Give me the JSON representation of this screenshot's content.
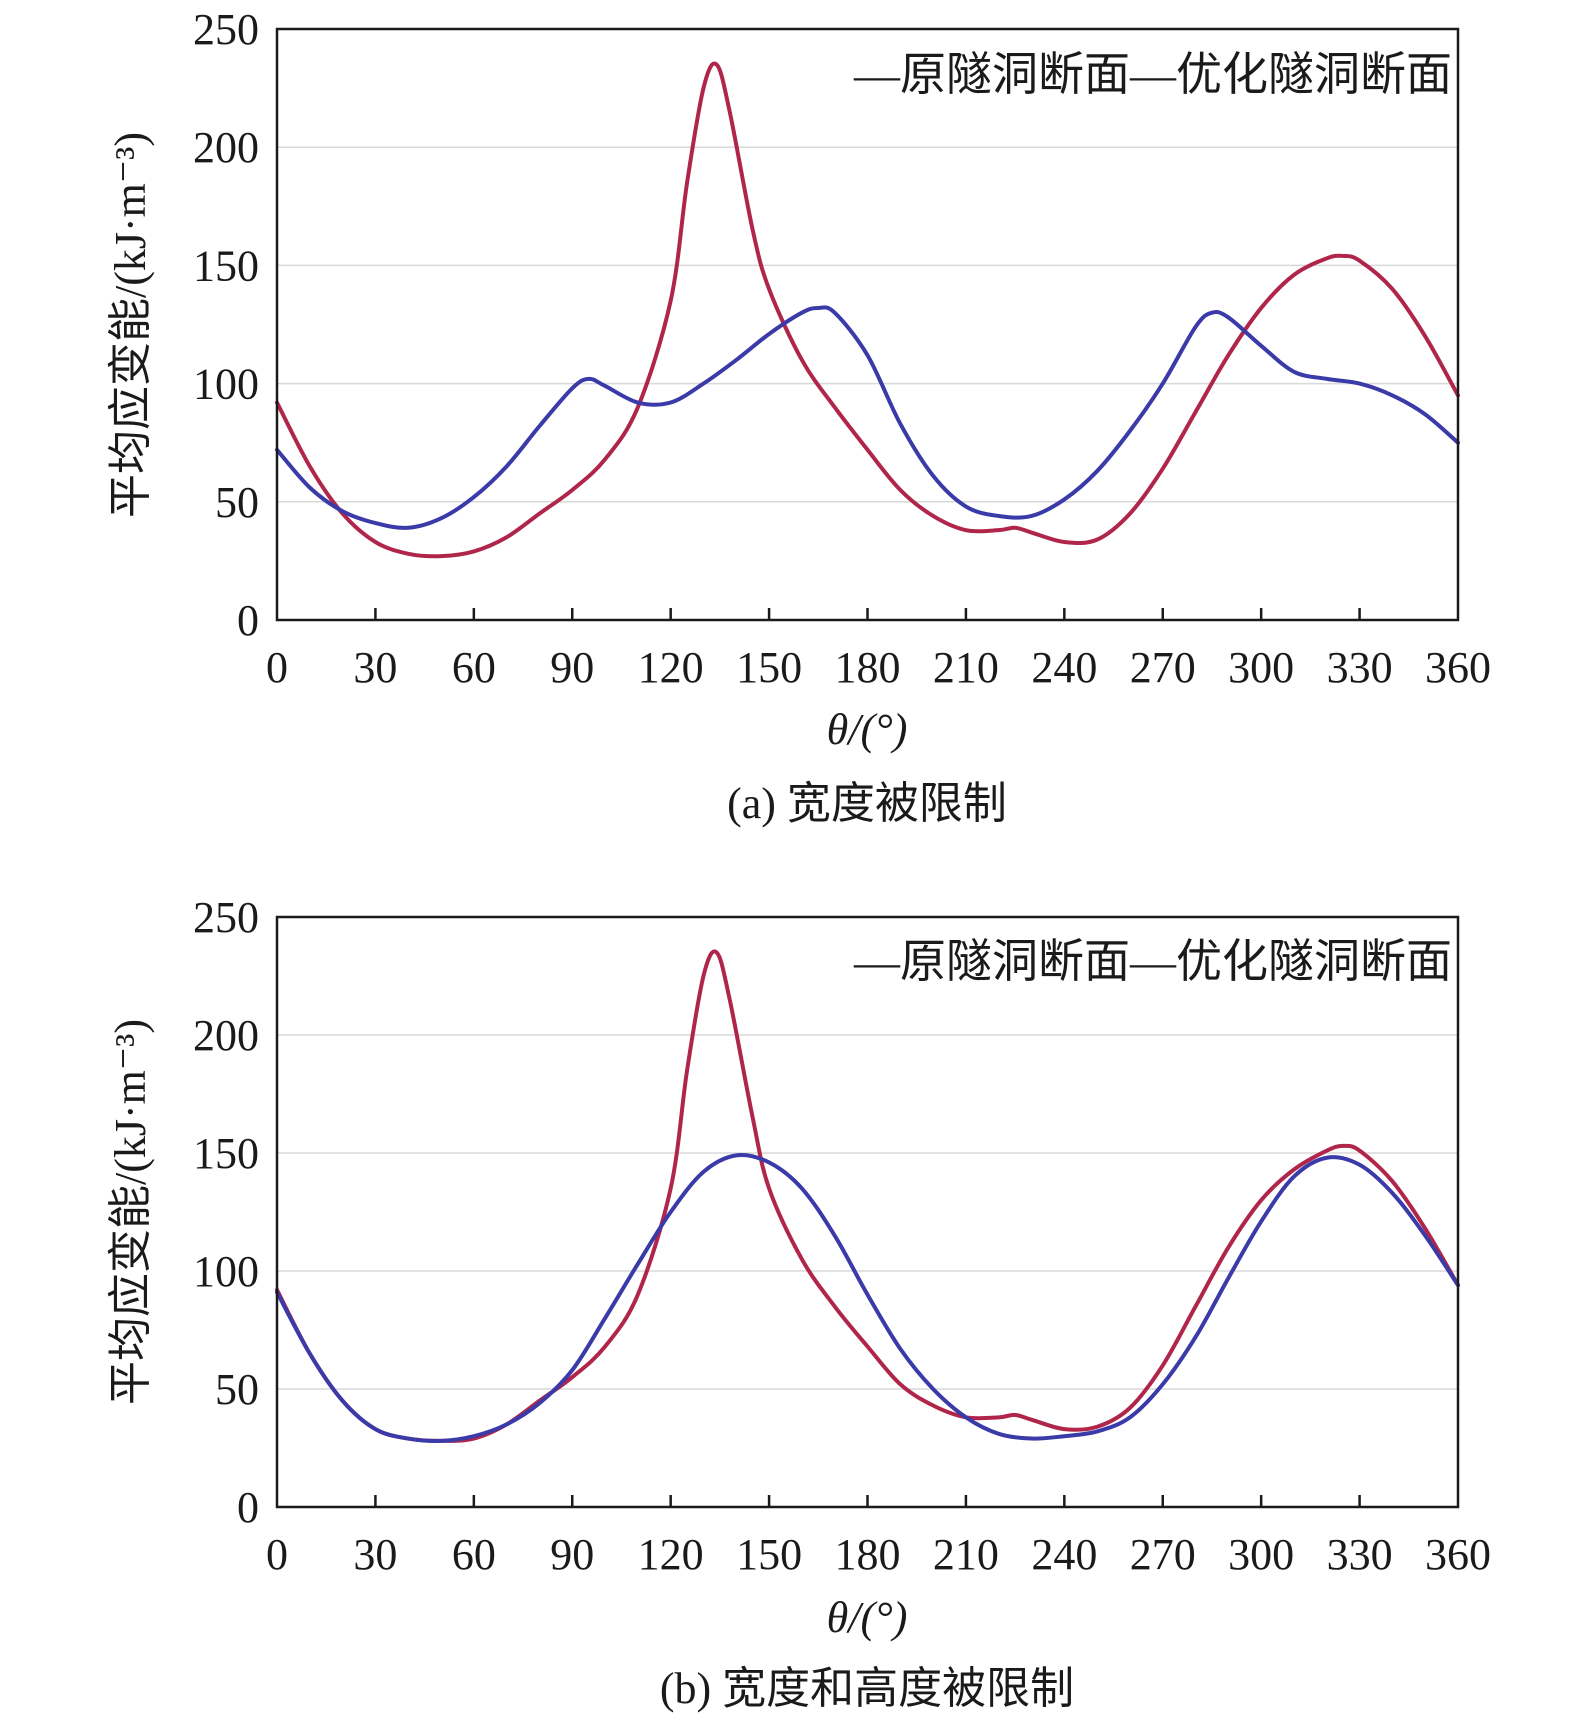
{
  "colors": {
    "original": "#b0264a",
    "optimized": "#3a3aa8",
    "grid": "#d9d9d9",
    "axis": "#1a1a1a"
  },
  "chart_data": [
    {
      "type": "line",
      "caption": "(a) 宽度被限制",
      "xlabel": "θ/(°)",
      "ylabel": "平均应变能/(kJ·m⁻³)",
      "xlim": [
        0,
        360
      ],
      "ylim": [
        0,
        250
      ],
      "xticks": [
        "0",
        "30",
        "60",
        "90",
        "120",
        "150",
        "180",
        "210",
        "240",
        "270",
        "300",
        "330",
        "360"
      ],
      "yticks": [
        "0",
        "50",
        "100",
        "150",
        "200",
        "250"
      ],
      "grid": true,
      "legend_position": "top-right",
      "legend_text": "—原隧洞断面—优化隧洞断面",
      "series": [
        {
          "name": "原隧洞断面",
          "color_key": "original",
          "x": [
            0,
            10,
            20,
            30,
            40,
            50,
            60,
            70,
            80,
            90,
            100,
            110,
            120,
            125,
            130,
            134,
            138,
            145,
            150,
            160,
            170,
            180,
            190,
            200,
            210,
            220,
            225,
            230,
            240,
            250,
            260,
            270,
            280,
            290,
            300,
            310,
            320,
            325,
            330,
            340,
            350,
            360
          ],
          "y": [
            92,
            65,
            45,
            33,
            28,
            27,
            29,
            35,
            45,
            55,
            68,
            90,
            135,
            185,
            225,
            235,
            215,
            165,
            140,
            110,
            90,
            72,
            55,
            44,
            38,
            38,
            39,
            37,
            33,
            34,
            45,
            64,
            88,
            112,
            132,
            146,
            153,
            154,
            152,
            140,
            120,
            95
          ]
        },
        {
          "name": "优化隧洞断面",
          "color_key": "optimized",
          "x": [
            0,
            10,
            20,
            30,
            40,
            50,
            60,
            70,
            80,
            90,
            95,
            100,
            110,
            120,
            130,
            140,
            150,
            160,
            165,
            170,
            180,
            190,
            200,
            210,
            220,
            230,
            240,
            250,
            260,
            270,
            280,
            285,
            290,
            300,
            310,
            320,
            330,
            340,
            350,
            360
          ],
          "y": [
            72,
            56,
            46,
            41,
            39,
            43,
            52,
            65,
            82,
            98,
            102,
            99,
            92,
            92,
            100,
            110,
            121,
            130,
            132,
            130,
            112,
            83,
            61,
            48,
            44,
            44,
            51,
            63,
            80,
            100,
            124,
            130,
            128,
            116,
            105,
            102,
            100,
            95,
            87,
            75
          ]
        }
      ]
    },
    {
      "type": "line",
      "caption": "(b) 宽度和高度被限制",
      "xlabel": "θ/(°)",
      "ylabel": "平均应变能/(kJ·m⁻³)",
      "xlim": [
        0,
        360
      ],
      "ylim": [
        0,
        250
      ],
      "xticks": [
        "0",
        "30",
        "60",
        "90",
        "120",
        "150",
        "180",
        "210",
        "240",
        "270",
        "300",
        "330",
        "360"
      ],
      "yticks": [
        "0",
        "50",
        "100",
        "150",
        "200",
        "250"
      ],
      "grid": true,
      "legend_position": "top-right",
      "legend_text": "—原隧洞断面—优化隧洞断面",
      "series": [
        {
          "name": "原隧洞断面",
          "color_key": "original",
          "x": [
            0,
            10,
            20,
            30,
            40,
            50,
            60,
            70,
            80,
            90,
            100,
            110,
            120,
            125,
            130,
            134,
            138,
            145,
            150,
            160,
            170,
            180,
            190,
            200,
            210,
            220,
            225,
            230,
            240,
            250,
            260,
            270,
            280,
            290,
            300,
            310,
            320,
            325,
            330,
            340,
            350,
            360
          ],
          "y": [
            92,
            65,
            45,
            33,
            29,
            28,
            29,
            35,
            45,
            55,
            68,
            90,
            135,
            185,
            225,
            235,
            215,
            165,
            135,
            105,
            85,
            68,
            52,
            43,
            38,
            38,
            39,
            37,
            33,
            34,
            42,
            60,
            85,
            110,
            130,
            143,
            151,
            153,
            151,
            138,
            118,
            94
          ]
        },
        {
          "name": "优化隧洞断面",
          "color_key": "optimized",
          "x": [
            0,
            10,
            20,
            30,
            40,
            50,
            60,
            70,
            80,
            90,
            100,
            110,
            120,
            130,
            140,
            150,
            160,
            170,
            180,
            190,
            200,
            210,
            220,
            230,
            240,
            250,
            260,
            270,
            280,
            290,
            300,
            310,
            320,
            330,
            340,
            350,
            360
          ],
          "y": [
            91,
            65,
            45,
            33,
            29,
            28,
            30,
            35,
            44,
            58,
            80,
            103,
            125,
            142,
            149,
            146,
            135,
            115,
            90,
            67,
            50,
            38,
            31,
            29,
            30,
            32,
            38,
            52,
            72,
            97,
            121,
            140,
            148,
            145,
            133,
            115,
            94
          ]
        }
      ]
    }
  ]
}
